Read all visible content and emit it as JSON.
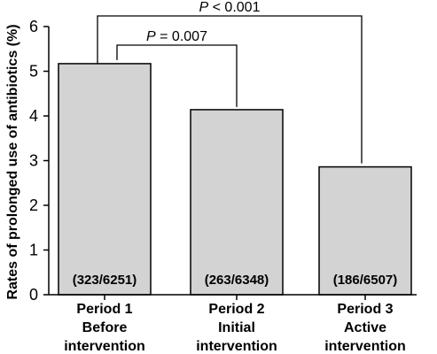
{
  "chart_data": {
    "type": "bar",
    "title": "",
    "xlabel": "",
    "ylabel": "Rates of prolonged use of antibiotics (%)",
    "ylim": [
      0,
      6
    ],
    "yticks": [
      "0",
      "1",
      "2",
      "3",
      "4",
      "5",
      "6"
    ],
    "grid": false,
    "bar_color": "#d3d3d3",
    "categories": [
      [
        "Period 1",
        "Before",
        "intervention"
      ],
      [
        "Period 2",
        "Initial",
        "intervention"
      ],
      [
        "Period 3",
        "Active",
        "intervention"
      ]
    ],
    "values": [
      5.17,
      4.14,
      2.86
    ],
    "bar_labels": [
      "(323/6251)",
      "(263/6348)",
      "(186/6507)"
    ],
    "significance": [
      {
        "from": 0,
        "to": 1,
        "p_italic": "P",
        "p_rest": " = 0.007"
      },
      {
        "from": 0,
        "to": 2,
        "p_italic": "P",
        "p_rest": " < 0.001"
      }
    ]
  }
}
